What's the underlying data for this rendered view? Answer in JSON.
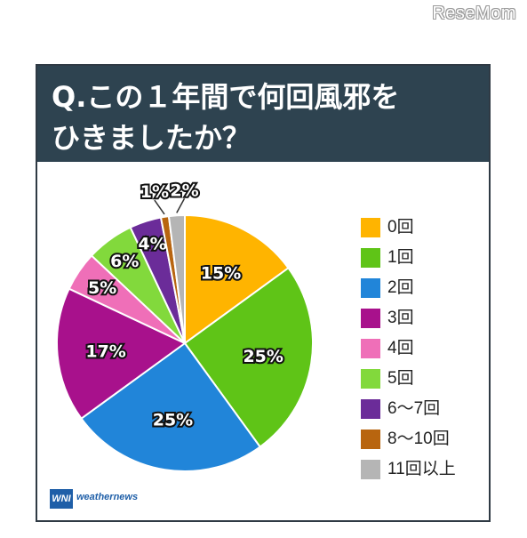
{
  "watermark": "ReseMom",
  "title": {
    "line1": "Q.この１年間で何回風邪を",
    "line2": "ひきましたか？"
  },
  "logo": {
    "mark": "WNI",
    "text": "weathernews"
  },
  "chart_data": {
    "type": "pie",
    "title": "Q.この１年間で何回風邪をひきましたか？",
    "start_angle": "top",
    "direction": "clockwise",
    "legend_position": "right",
    "slices": [
      {
        "label": "0回",
        "value": 15,
        "value_label": "15%",
        "color": "#ffb400"
      },
      {
        "label": "1回",
        "value": 25,
        "value_label": "25%",
        "color": "#5fc417"
      },
      {
        "label": "2回",
        "value": 25,
        "value_label": "25%",
        "color": "#2185d9"
      },
      {
        "label": "3回",
        "value": 17,
        "value_label": "17%",
        "color": "#a8118c"
      },
      {
        "label": "4回",
        "value": 5,
        "value_label": "5%",
        "color": "#ef6fb8"
      },
      {
        "label": "5回",
        "value": 6,
        "value_label": "6%",
        "color": "#82d93c"
      },
      {
        "label": "6〜7回",
        "value": 4,
        "value_label": "4%",
        "color": "#6b2c99"
      },
      {
        "label": "8〜10回",
        "value": 1,
        "value_label": "1%",
        "color": "#b8650f"
      },
      {
        "label": "11回以上",
        "value": 2,
        "value_label": "2%",
        "color": "#b5b5b5"
      }
    ]
  }
}
